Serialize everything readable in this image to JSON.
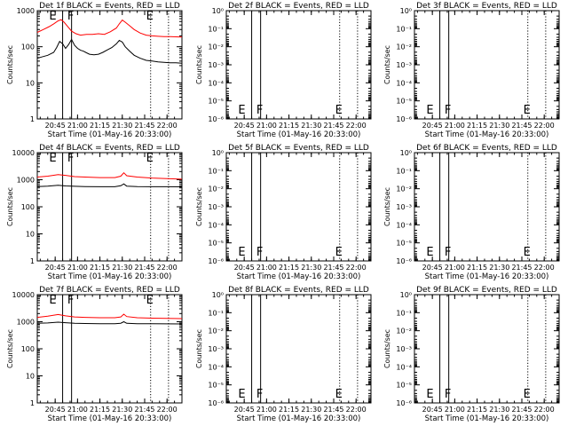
{
  "chart_data": [
    {
      "type": "line",
      "title": "Det 1f BLACK = Events, RED = LLD",
      "ylabel": "Counts/sec",
      "xlabel": "Start Time (01-May-16 20:33:00)",
      "xticks": [
        "20:45",
        "21:00",
        "21:15",
        "21:30",
        "21:45",
        "22:00"
      ],
      "yscale": "log",
      "ylim": [
        1,
        1000
      ],
      "yticks": [
        "1",
        "10",
        "100",
        "1000"
      ],
      "markers": [
        "E",
        "F",
        "E"
      ],
      "series": [
        {
          "color": "#ff0000",
          "x": [
            "20:33",
            "20:37",
            "20:41",
            "20:44",
            "20:47",
            "20:49",
            "20:51",
            "20:53",
            "20:56",
            "20:59",
            "21:02",
            "21:06",
            "21:10",
            "21:14",
            "21:18",
            "21:22",
            "21:26",
            "21:28",
            "21:30",
            "21:32",
            "21:35",
            "21:38",
            "21:42",
            "21:46",
            "21:50",
            "21:54",
            "21:58",
            "22:02",
            "22:06",
            "22:10"
          ],
          "values": [
            250,
            300,
            360,
            430,
            520,
            560,
            480,
            380,
            270,
            230,
            210,
            220,
            220,
            230,
            220,
            260,
            330,
            430,
            550,
            480,
            380,
            300,
            240,
            210,
            200,
            195,
            190,
            190,
            188,
            185
          ]
        },
        {
          "color": "#000000",
          "x": [
            "20:33",
            "20:36",
            "20:40",
            "20:44",
            "20:46",
            "20:48",
            "20:50",
            "20:52",
            "20:54",
            "20:56",
            "20:58",
            "21:00",
            "21:02",
            "21:04",
            "21:06",
            "21:08",
            "21:11",
            "21:14",
            "21:17",
            "21:20",
            "21:23",
            "21:26",
            "21:28",
            "21:30",
            "21:32",
            "21:35",
            "21:38",
            "21:42",
            "21:46",
            "21:50",
            "21:54",
            "21:58",
            "22:02",
            "22:06",
            "22:10"
          ],
          "values": [
            48,
            52,
            58,
            70,
            95,
            140,
            120,
            90,
            115,
            160,
            110,
            90,
            80,
            75,
            68,
            62,
            60,
            62,
            70,
            82,
            95,
            120,
            150,
            135,
            100,
            75,
            58,
            48,
            42,
            40,
            38,
            37,
            36,
            36,
            35
          ]
        }
      ]
    },
    {
      "type": "line",
      "title": "Det 2f BLACK = Events, RED = LLD",
      "ylabel": "Counts/sec",
      "xlabel": "Start Time (01-May-16 20:33:00)",
      "xticks": [
        "20:45",
        "21:00",
        "21:15",
        "21:30",
        "21:45",
        "22:00"
      ],
      "yscale": "log",
      "ylim": [
        1,
        1e-06
      ],
      "yticks": [
        "10⁰",
        "10⁻¹",
        "10⁻²",
        "10⁻³",
        "10⁻⁴",
        "10⁻⁵",
        "10⁻⁶"
      ],
      "markers": [
        "E",
        "F",
        "E"
      ],
      "series": []
    },
    {
      "type": "line",
      "title": "Det 3f BLACK = Events, RED = LLD",
      "ylabel": "Counts/sec",
      "xlabel": "Start Time (01-May-16 20:33:00)",
      "xticks": [
        "20:45",
        "21:00",
        "21:15",
        "21:30",
        "21:45",
        "22:00"
      ],
      "yscale": "log",
      "ylim": [
        1,
        1e-06
      ],
      "yticks": [
        "10⁰",
        "10⁻¹",
        "10⁻²",
        "10⁻³",
        "10⁻⁴",
        "10⁻⁵",
        "10⁻⁶"
      ],
      "markers": [
        "E",
        "F",
        "E"
      ],
      "series": []
    },
    {
      "type": "line",
      "title": "Det 4f BLACK = Events, RED = LLD",
      "ylabel": "Counts/sec",
      "xlabel": "Start Time (01-May-16 20:33:00)",
      "xticks": [
        "20:45",
        "21:00",
        "21:15",
        "21:30",
        "21:45",
        "22:00"
      ],
      "yscale": "log",
      "ylim": [
        1,
        10000
      ],
      "yticks": [
        "1",
        "10",
        "100",
        "1000",
        "10000"
      ],
      "markers": [
        "E",
        "F",
        "E"
      ],
      "series": [
        {
          "color": "#ff0000",
          "x": [
            "20:33",
            "20:40",
            "20:47",
            "20:52",
            "20:58",
            "21:05",
            "21:15",
            "21:25",
            "21:29",
            "21:31",
            "21:33",
            "21:40",
            "21:50",
            "22:00",
            "22:10"
          ],
          "values": [
            1250,
            1350,
            1550,
            1450,
            1300,
            1250,
            1200,
            1200,
            1350,
            1800,
            1400,
            1250,
            1150,
            1100,
            1050
          ]
        },
        {
          "color": "#000000",
          "x": [
            "20:33",
            "20:40",
            "20:47",
            "20:52",
            "20:58",
            "21:05",
            "21:15",
            "21:25",
            "21:29",
            "21:31",
            "21:33",
            "21:40",
            "21:50",
            "22:00",
            "22:10"
          ],
          "values": [
            560,
            580,
            620,
            590,
            570,
            560,
            550,
            550,
            600,
            700,
            580,
            560,
            550,
            550,
            545
          ]
        }
      ]
    },
    {
      "type": "line",
      "title": "Det 5f BLACK = Events, RED = LLD",
      "ylabel": "Counts/sec",
      "xlabel": "Start Time (01-May-16 20:33:00)",
      "xticks": [
        "20:45",
        "21:00",
        "21:15",
        "21:30",
        "21:45",
        "22:00"
      ],
      "yscale": "log",
      "ylim": [
        1,
        1e-06
      ],
      "yticks": [
        "10⁰",
        "10⁻¹",
        "10⁻²",
        "10⁻³",
        "10⁻⁴",
        "10⁻⁵",
        "10⁻⁶"
      ],
      "markers": [
        "E",
        "F",
        "E"
      ],
      "series": []
    },
    {
      "type": "line",
      "title": "Det 6f BLACK = Events, RED = LLD",
      "ylabel": "Counts/sec",
      "xlabel": "Start Time (01-May-16 20:33:00)",
      "xticks": [
        "20:45",
        "21:00",
        "21:15",
        "21:30",
        "21:45",
        "22:00"
      ],
      "yscale": "log",
      "ylim": [
        1,
        1e-06
      ],
      "yticks": [
        "10⁰",
        "10⁻¹",
        "10⁻²",
        "10⁻³",
        "10⁻⁴",
        "10⁻⁵",
        "10⁻⁶"
      ],
      "markers": [
        "E",
        "F",
        "E"
      ],
      "series": []
    },
    {
      "type": "line",
      "title": "Det 7f BLACK = Events, RED = LLD",
      "ylabel": "Counts/sec",
      "xlabel": "Start Time (01-May-16 20:33:00)",
      "xticks": [
        "20:45",
        "21:00",
        "21:15",
        "21:30",
        "21:45",
        "22:00"
      ],
      "yscale": "log",
      "ylim": [
        1,
        10000
      ],
      "yticks": [
        "1",
        "10",
        "100",
        "1000",
        "10000"
      ],
      "markers": [
        "E",
        "F",
        "E"
      ],
      "series": [
        {
          "color": "#ff0000",
          "x": [
            "20:33",
            "20:40",
            "20:47",
            "20:52",
            "20:58",
            "21:05",
            "21:15",
            "21:25",
            "21:29",
            "21:31",
            "21:33",
            "21:40",
            "21:50",
            "22:00",
            "22:10"
          ],
          "values": [
            1450,
            1600,
            1850,
            1650,
            1500,
            1450,
            1400,
            1400,
            1500,
            1900,
            1550,
            1400,
            1350,
            1320,
            1300
          ]
        },
        {
          "color": "#000000",
          "x": [
            "20:33",
            "20:40",
            "20:47",
            "20:52",
            "20:58",
            "21:05",
            "21:15",
            "21:25",
            "21:29",
            "21:31",
            "21:33",
            "21:40",
            "21:50",
            "22:00",
            "22:10"
          ],
          "values": [
            870,
            900,
            960,
            920,
            880,
            860,
            850,
            850,
            880,
            1000,
            870,
            850,
            840,
            835,
            830
          ]
        }
      ]
    },
    {
      "type": "line",
      "title": "Det 8f BLACK = Events, RED = LLD",
      "ylabel": "Counts/sec",
      "xlabel": "Start Time (01-May-16 20:33:00)",
      "xticks": [
        "20:45",
        "21:00",
        "21:15",
        "21:30",
        "21:45",
        "22:00"
      ],
      "yscale": "log",
      "ylim": [
        1,
        1e-06
      ],
      "yticks": [
        "10⁰",
        "10⁻¹",
        "10⁻²",
        "10⁻³",
        "10⁻⁴",
        "10⁻⁵",
        "10⁻⁶"
      ],
      "markers": [
        "E",
        "F",
        "E"
      ],
      "series": []
    },
    {
      "type": "line",
      "title": "Det 9f BLACK = Events, RED = LLD",
      "ylabel": "Counts/sec",
      "xlabel": "Start Time (01-May-16 20:33:00)",
      "xticks": [
        "20:45",
        "21:00",
        "21:15",
        "21:30",
        "21:45",
        "22:00"
      ],
      "yscale": "log",
      "ylim": [
        1,
        1e-06
      ],
      "yticks": [
        "10⁰",
        "10⁻¹",
        "10⁻²",
        "10⁻³",
        "10⁻⁴",
        "10⁻⁵",
        "10⁻⁶"
      ],
      "markers": [
        "E",
        "F",
        "E"
      ],
      "series": []
    }
  ]
}
